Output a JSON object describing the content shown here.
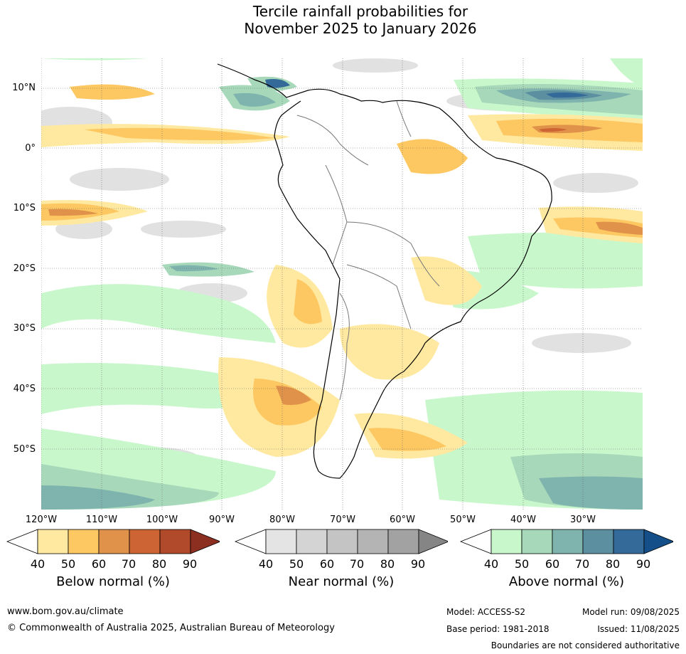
{
  "title": {
    "line1": "Tercile rainfall probabilities for",
    "line2": "November 2025 to January 2026"
  },
  "map": {
    "lat_labels": [
      "10°N",
      "0°",
      "10°S",
      "20°S",
      "30°S",
      "40°S",
      "50°S"
    ],
    "lon_labels": [
      "120°W",
      "110°W",
      "100°W",
      "90°W",
      "80°W",
      "70°W",
      "60°W",
      "50°W",
      "40°W",
      "30°W"
    ]
  },
  "colorbars": [
    {
      "label": "Below normal (%)",
      "ticks": [
        "40",
        "50",
        "60",
        "70",
        "80",
        "90"
      ],
      "colors": [
        "#ffe9a0",
        "#fdc761",
        "#e0924a",
        "#cc6433",
        "#b04a2a",
        "#8c2e20"
      ]
    },
    {
      "label": "Near normal (%)",
      "ticks": [
        "40",
        "50",
        "60",
        "70",
        "80",
        "90"
      ],
      "colors": [
        "#e4e4e4",
        "#d4d4d4",
        "#c4c4c4",
        "#b4b4b4",
        "#a2a2a2",
        "#858585"
      ]
    },
    {
      "label": "Above normal (%)",
      "ticks": [
        "40",
        "50",
        "60",
        "70",
        "80",
        "90"
      ],
      "colors": [
        "#c8f7cb",
        "#a6d8b9",
        "#7fb4ae",
        "#5c90a0",
        "#336a99",
        "#154f8a"
      ]
    }
  ],
  "footer": {
    "website": "www.bom.gov.au/climate",
    "copyright": "© Commonwealth of Australia 2025, Australian Bureau of Meteorology",
    "model": "Model: ACCESS-S2",
    "base_period": "Base period: 1981-2018",
    "model_run": "Model run: 09/08/2025",
    "issued": "Issued: 11/08/2025",
    "disclaimer": "Boundaries are not considered authoritative"
  }
}
